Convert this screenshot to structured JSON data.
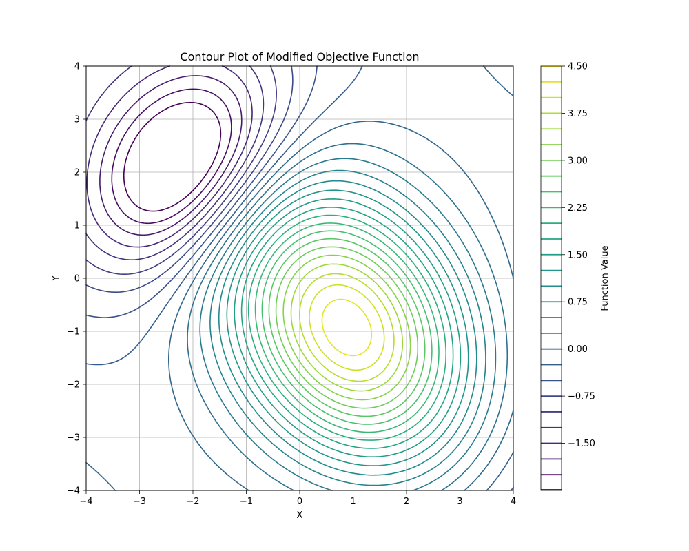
{
  "chart_data": {
    "type": "contour",
    "title": "Contour Plot of Modified Objective Function",
    "xlabel": "X",
    "ylabel": "Y",
    "xlim": [
      -4,
      4
    ],
    "ylim": [
      -4,
      4
    ],
    "x_ticks": [
      -4,
      -3,
      -2,
      -1,
      0,
      1,
      2,
      3,
      4
    ],
    "y_ticks": [
      -4,
      -3,
      -2,
      -1,
      0,
      1,
      2,
      3,
      4
    ],
    "x_tick_labels": [
      "−4",
      "−3",
      "−2",
      "−1",
      "0",
      "1",
      "2",
      "3",
      "4"
    ],
    "y_tick_labels": [
      "−4",
      "−3",
      "−2",
      "−1",
      "0",
      "1",
      "2",
      "3",
      "4"
    ],
    "grid": true,
    "colormap": "viridis",
    "levels": [
      -2.25,
      -2.0,
      -1.75,
      -1.5,
      -1.25,
      -1.0,
      -0.75,
      -0.5,
      -0.25,
      0.0,
      0.25,
      0.5,
      0.75,
      1.0,
      1.25,
      1.5,
      1.75,
      2.0,
      2.25,
      2.5,
      2.75,
      3.0,
      3.25,
      3.5,
      3.75,
      4.0,
      4.25,
      4.5
    ],
    "extrema": [
      {
        "kind": "maximum",
        "x": 0.9,
        "y": -0.95,
        "value": 4.5
      },
      {
        "kind": "minimum",
        "x": -2.2,
        "y": 2.15,
        "value": -2.2
      }
    ],
    "colorbar": {
      "label": "Function Value",
      "range": [
        -2.25,
        4.5
      ],
      "ticks": [
        4.5,
        3.75,
        3.0,
        2.25,
        1.5,
        0.75,
        0.0,
        -0.75,
        -1.5
      ],
      "tick_labels": [
        "4.50",
        "3.75",
        "3.00",
        "2.25",
        "1.50",
        "0.75",
        "0.00",
        "−0.75",
        "−1.50"
      ]
    }
  }
}
